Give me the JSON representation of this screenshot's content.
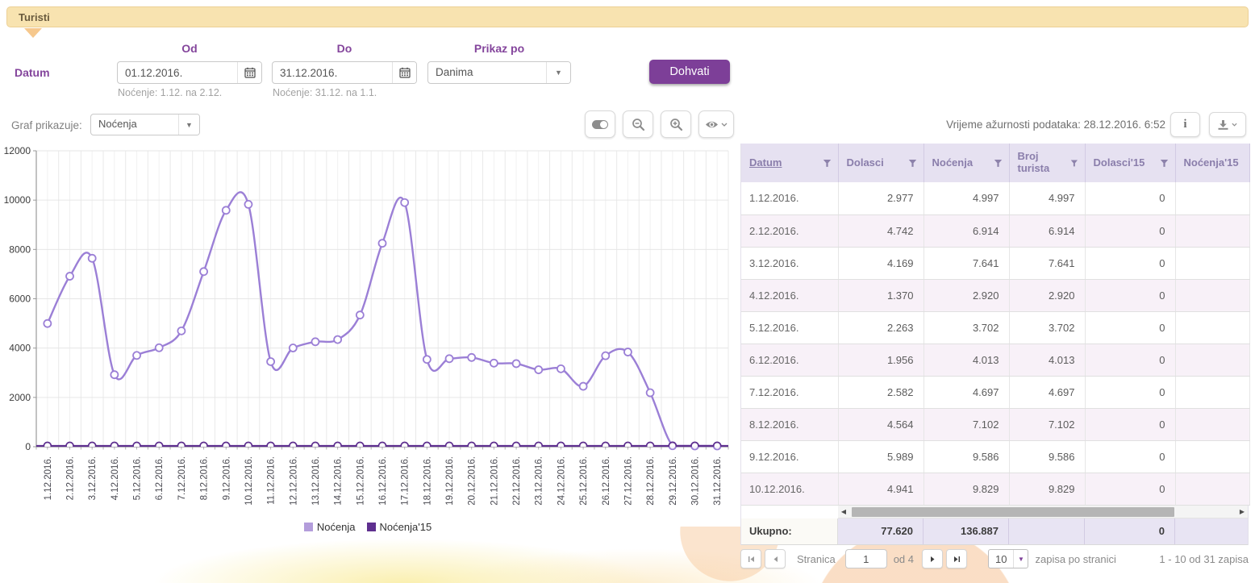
{
  "header": {
    "tab_label": "Turisti"
  },
  "filters": {
    "datum_label": "Datum",
    "od_label": "Od",
    "do_label": "Do",
    "prikaz_label": "Prikaz po",
    "od_value": "01.12.2016.",
    "do_value": "31.12.2016.",
    "od_hint": "Noćenje: 1.12. na 2.12.",
    "do_hint": "Noćenje: 31.12. na 1.1.",
    "prikaz_value": "Danima",
    "fetch_label": "Dohvati"
  },
  "chart_controls": {
    "graf_label": "Graf prikazuje:",
    "graf_value": "Noćenja"
  },
  "table_info": {
    "updated_label": "Vrijeme ažurnosti podataka: 28.12.2016. 6:52"
  },
  "chart_data": {
    "type": "line",
    "x": [
      "1.12.2016.",
      "2.12.2016.",
      "3.12.2016.",
      "4.12.2016.",
      "5.12.2016.",
      "6.12.2016.",
      "7.12.2016.",
      "8.12.2016.",
      "9.12.2016.",
      "10.12.2016.",
      "11.12.2016.",
      "12.12.2016.",
      "13.12.2016.",
      "14.12.2016.",
      "15.12.2016.",
      "16.12.2016.",
      "17.12.2016.",
      "18.12.2016.",
      "19.12.2016.",
      "20.12.2016.",
      "21.12.2016.",
      "22.12.2016.",
      "23.12.2016.",
      "24.12.2016.",
      "25.12.2016.",
      "26.12.2016.",
      "27.12.2016.",
      "28.12.2016.",
      "29.12.2016.",
      "30.12.2016.",
      "31.12.2016."
    ],
    "series": [
      {
        "name": "Noćenja",
        "color": "#9b7fd6",
        "legend_color": "#b39ddb",
        "values": [
          4997,
          6914,
          7641,
          2920,
          3702,
          4013,
          4697,
          7102,
          9586,
          9829,
          3450,
          4005,
          4257,
          4345,
          5340,
          8250,
          9900,
          3540,
          3570,
          3620,
          3390,
          3370,
          3120,
          3160,
          2450,
          3690,
          3840,
          2190,
          40,
          0,
          0
        ]
      },
      {
        "name": "Noćenja'15",
        "color": "#5e2f8f",
        "legend_color": "#5e2f8f",
        "values": [
          0,
          0,
          0,
          0,
          0,
          0,
          0,
          0,
          0,
          0,
          0,
          0,
          0,
          0,
          0,
          0,
          0,
          0,
          0,
          0,
          0,
          0,
          0,
          0,
          0,
          0,
          0,
          0,
          0,
          0,
          0
        ]
      }
    ],
    "ylim": [
      0,
      12000
    ],
    "yticks": [
      0,
      2000,
      4000,
      6000,
      8000,
      10000,
      12000
    ],
    "grid": true,
    "legend_position": "bottom"
  },
  "table": {
    "columns": [
      "Datum",
      "Dolasci",
      "Noćenja",
      "Broj turista",
      "Dolasci'15",
      "Noćenja'15"
    ],
    "sorted_column": "Datum",
    "rows": [
      [
        "1.12.2016.",
        "2.977",
        "4.997",
        "4.997",
        "0",
        ""
      ],
      [
        "2.12.2016.",
        "4.742",
        "6.914",
        "6.914",
        "0",
        ""
      ],
      [
        "3.12.2016.",
        "4.169",
        "7.641",
        "7.641",
        "0",
        ""
      ],
      [
        "4.12.2016.",
        "1.370",
        "2.920",
        "2.920",
        "0",
        ""
      ],
      [
        "5.12.2016.",
        "2.263",
        "3.702",
        "3.702",
        "0",
        ""
      ],
      [
        "6.12.2016.",
        "1.956",
        "4.013",
        "4.013",
        "0",
        ""
      ],
      [
        "7.12.2016.",
        "2.582",
        "4.697",
        "4.697",
        "0",
        ""
      ],
      [
        "8.12.2016.",
        "4.564",
        "7.102",
        "7.102",
        "0",
        ""
      ],
      [
        "9.12.2016.",
        "5.989",
        "9.586",
        "9.586",
        "0",
        ""
      ],
      [
        "10.12.2016.",
        "4.941",
        "9.829",
        "9.829",
        "0",
        ""
      ]
    ],
    "total_label": "Ukupno:",
    "totals": [
      "77.620",
      "136.887",
      "",
      "0",
      ""
    ]
  },
  "pagination": {
    "page_label": "Stranica",
    "page_value": "1",
    "of_label": "od 4",
    "page_size": "10",
    "per_page_label": "zapisa po stranici",
    "range_label": "1 - 10 od 31 zapisa"
  }
}
